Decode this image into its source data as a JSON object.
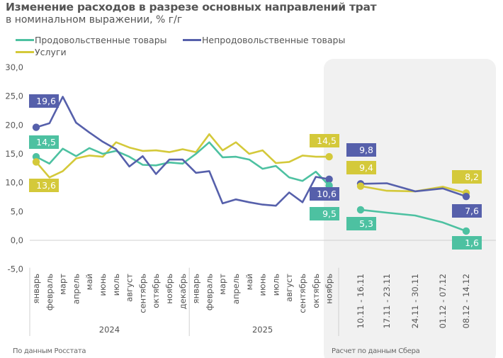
{
  "title": "Изменение расходов в разрезе основных направлений трат",
  "subtitle": "в номинальном выражении, % г/г",
  "source_left": "По данным Росстата",
  "source_right": "Расчет по данным Сбера",
  "colors": {
    "food": "#4dc1a1",
    "nonfood": "#5660ab",
    "services": "#d4c93a",
    "panel": "#f1f1f1",
    "grid": "#d0d0d0"
  },
  "chart_data": {
    "type": "line",
    "title": "Изменение расходов в разрезе основных направлений трат",
    "subtitle": "в номинальном выражении, % г/г",
    "xlabel": "",
    "ylabel": "",
    "ylim": [
      -5,
      30
    ],
    "yticks": [
      "30,0",
      "25,0",
      "20,0",
      "15,0",
      "10,0",
      "5,0",
      "0,0",
      "-5,0"
    ],
    "ytick_values": [
      30,
      25,
      20,
      15,
      10,
      5,
      0,
      -5
    ],
    "legend_position": "top-left",
    "monthly_categories": [
      "январь",
      "февраль",
      "март",
      "апрель",
      "май",
      "июнь",
      "июль",
      "август",
      "сентябрь",
      "октябрь",
      "ноябрь",
      "декабрь",
      "январь",
      "февраль",
      "март",
      "апрель",
      "май",
      "июнь",
      "июль",
      "август",
      "сентябрь",
      "октябрь",
      "ноябрь"
    ],
    "year_groups": [
      {
        "label": "2024",
        "count": 12
      },
      {
        "label": "2025",
        "count": 11
      }
    ],
    "weekly_categories": [
      "10.11 - 16.11",
      "17.11 - 23.11",
      "24.11 - 30.11",
      "01.12 - 07.12",
      "08.12 - 14.12"
    ],
    "series": [
      {
        "key": "food",
        "name": "Продовольственные товары",
        "monthly": [
          14.5,
          13.3,
          15.9,
          14.6,
          16.0,
          15.0,
          15.5,
          14.5,
          13.1,
          13.0,
          13.5,
          13.3,
          15.0,
          17.0,
          14.4,
          14.5,
          14.0,
          12.4,
          12.9,
          10.9,
          10.3,
          11.9,
          9.5
        ],
        "weekly": [
          5.3,
          4.8,
          4.3,
          3.1,
          1.6
        ]
      },
      {
        "key": "nonfood",
        "name": "Непродовольственные товары",
        "monthly": [
          19.6,
          20.3,
          24.9,
          20.4,
          18.7,
          17.1,
          15.8,
          12.8,
          14.6,
          11.5,
          14.0,
          14.0,
          11.7,
          12.0,
          6.4,
          7.1,
          6.6,
          6.2,
          6.0,
          8.3,
          6.6,
          11.0,
          10.6
        ],
        "weekly": [
          9.8,
          9.9,
          8.5,
          9.0,
          7.6
        ]
      },
      {
        "key": "services",
        "name": "Услуги",
        "monthly": [
          13.6,
          10.9,
          12.0,
          14.2,
          14.7,
          14.5,
          17.0,
          16.1,
          15.5,
          15.6,
          15.3,
          15.8,
          15.3,
          18.4,
          15.6,
          17.0,
          15.0,
          15.6,
          13.4,
          13.6,
          14.7,
          14.5,
          14.5
        ],
        "weekly": [
          9.4,
          8.6,
          8.5,
          9.3,
          8.2
        ]
      }
    ],
    "data_labels": [
      {
        "series": "nonfood",
        "segment": "monthly",
        "index": 0,
        "text": "19,6",
        "place": "above"
      },
      {
        "series": "food",
        "segment": "monthly",
        "index": 0,
        "text": "14,5",
        "place": "above"
      },
      {
        "series": "services",
        "segment": "monthly",
        "index": 0,
        "text": "13,6",
        "place": "below"
      },
      {
        "series": "services",
        "segment": "monthly",
        "index": 22,
        "text": "14,5",
        "place": "above"
      },
      {
        "series": "nonfood",
        "segment": "monthly",
        "index": 22,
        "text": "10,6",
        "place": "below"
      },
      {
        "series": "food",
        "segment": "monthly",
        "index": 22,
        "text": "9,5",
        "place": "below2"
      },
      {
        "series": "nonfood",
        "segment": "weekly",
        "index": 0,
        "text": "9,8",
        "place": "above2"
      },
      {
        "series": "services",
        "segment": "weekly",
        "index": 0,
        "text": "9,4",
        "place": "above"
      },
      {
        "series": "food",
        "segment": "weekly",
        "index": 0,
        "text": "5,3",
        "place": "below"
      },
      {
        "series": "services",
        "segment": "weekly",
        "index": 4,
        "text": "8,2",
        "place": "above"
      },
      {
        "series": "nonfood",
        "segment": "weekly",
        "index": 4,
        "text": "7,6",
        "place": "below"
      },
      {
        "series": "food",
        "segment": "weekly",
        "index": 4,
        "text": "1,6",
        "place": "below"
      }
    ]
  }
}
